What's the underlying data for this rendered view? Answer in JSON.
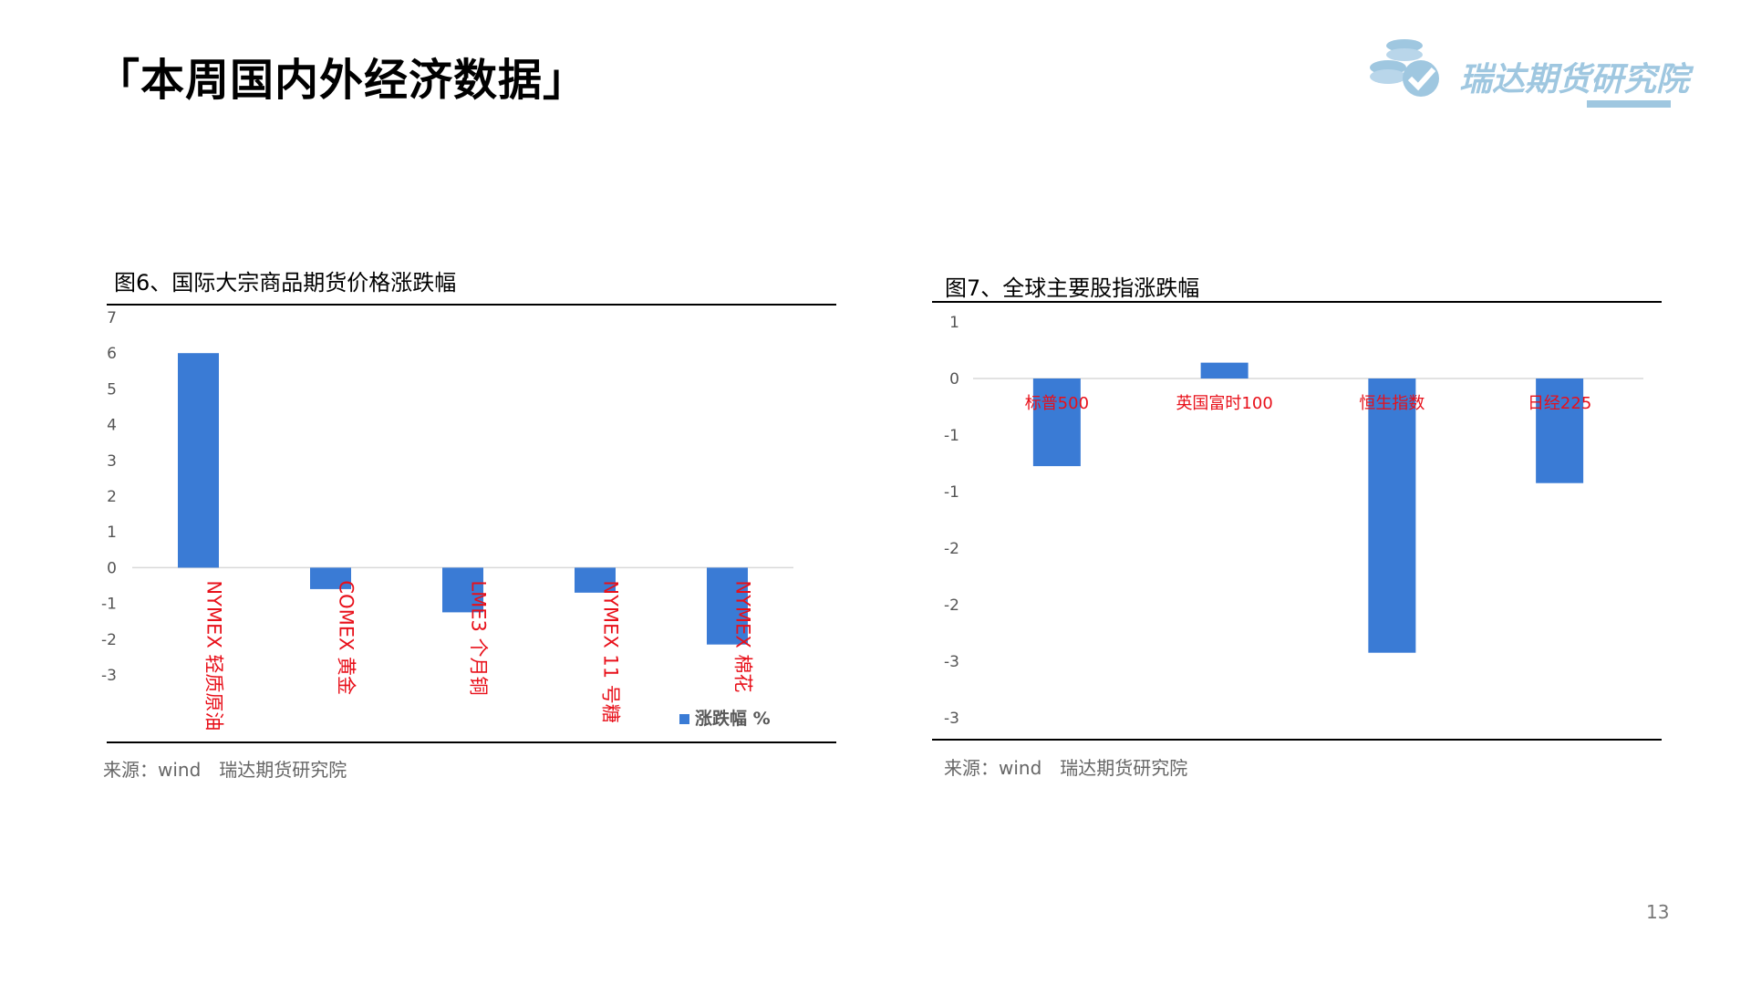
{
  "header": {
    "title": "「本周国内外经济数据」",
    "logo_text": "瑞达期货研究院"
  },
  "chart_data": [
    {
      "id": "chart6",
      "type": "bar",
      "title": "图6、国际大宗商品期货价格涨跌幅",
      "categories": [
        "NYMEX 轻质原油",
        "COMEX 黄金",
        "LME3 个月铜",
        "NYMEX 11 号糖",
        "NYMEX 棉花"
      ],
      "series": [
        {
          "name": "涨跌幅 %",
          "values": [
            6.0,
            -0.6,
            -1.25,
            -0.7,
            -2.15
          ]
        }
      ],
      "y_ticks": [
        "7",
        "6",
        "5",
        "4",
        "3",
        "2",
        "1",
        "0",
        "-1",
        "-2",
        "-3"
      ],
      "ylim": [
        -3,
        7
      ],
      "bar_color": "#3a7bd5",
      "label_color": "#e8101a",
      "legend": "bottom-right",
      "source": "来源：wind　瑞达期货研究院"
    },
    {
      "id": "chart7",
      "type": "bar",
      "title": "图7、全球主要股指涨跌幅",
      "categories": [
        "标普500",
        "英国富时100",
        "恒生指数",
        "日经225"
      ],
      "series": [
        {
          "values": [
            -1.55,
            0.28,
            -4.85,
            -1.85
          ]
        }
      ],
      "y_ticks": [
        "1",
        "0",
        "-1",
        "-1",
        "-2",
        "-2",
        "-3",
        "-3"
      ],
      "ylim": [
        -6,
        1
      ],
      "bar_color": "#3a7bd5",
      "label_color": "#e8101a",
      "source": "来源：wind　瑞达期货研究院"
    }
  ],
  "page_number": "13"
}
